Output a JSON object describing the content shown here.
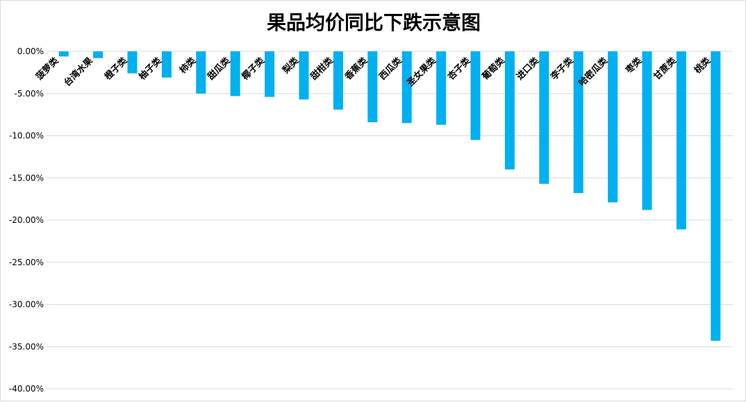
{
  "chart_data": {
    "type": "bar",
    "title": "果品均价同比下跌示意图",
    "xlabel": "",
    "ylabel": "",
    "ylim": [
      -40,
      0
    ],
    "y_ticks": [
      "0.00%",
      "-5.00%",
      "-10.00%",
      "-15.00%",
      "-20.00%",
      "-25.00%",
      "-30.00%",
      "-35.00%",
      "-40.00%"
    ],
    "grid": true,
    "legend": "none",
    "bar_color": "#00B0F0",
    "categories": [
      "菠萝类",
      "台湾水果",
      "橙子类",
      "柚子类",
      "柿类",
      "甜瓜类",
      "椰子类",
      "梨类",
      "甜柑类",
      "香蕉类",
      "西瓜类",
      "圣女果类",
      "杏子类",
      "葡萄类",
      "进口类",
      "李子类",
      "哈密瓜类",
      "枣类",
      "甘蔗类",
      "桃类"
    ],
    "values": [
      -0.6,
      -0.8,
      -2.6,
      -3.1,
      -5.0,
      -5.3,
      -5.4,
      -5.7,
      -6.9,
      -8.4,
      -8.5,
      -8.7,
      -10.5,
      -14.0,
      -15.7,
      -16.8,
      -17.9,
      -18.8,
      -21.1,
      -34.3
    ]
  }
}
